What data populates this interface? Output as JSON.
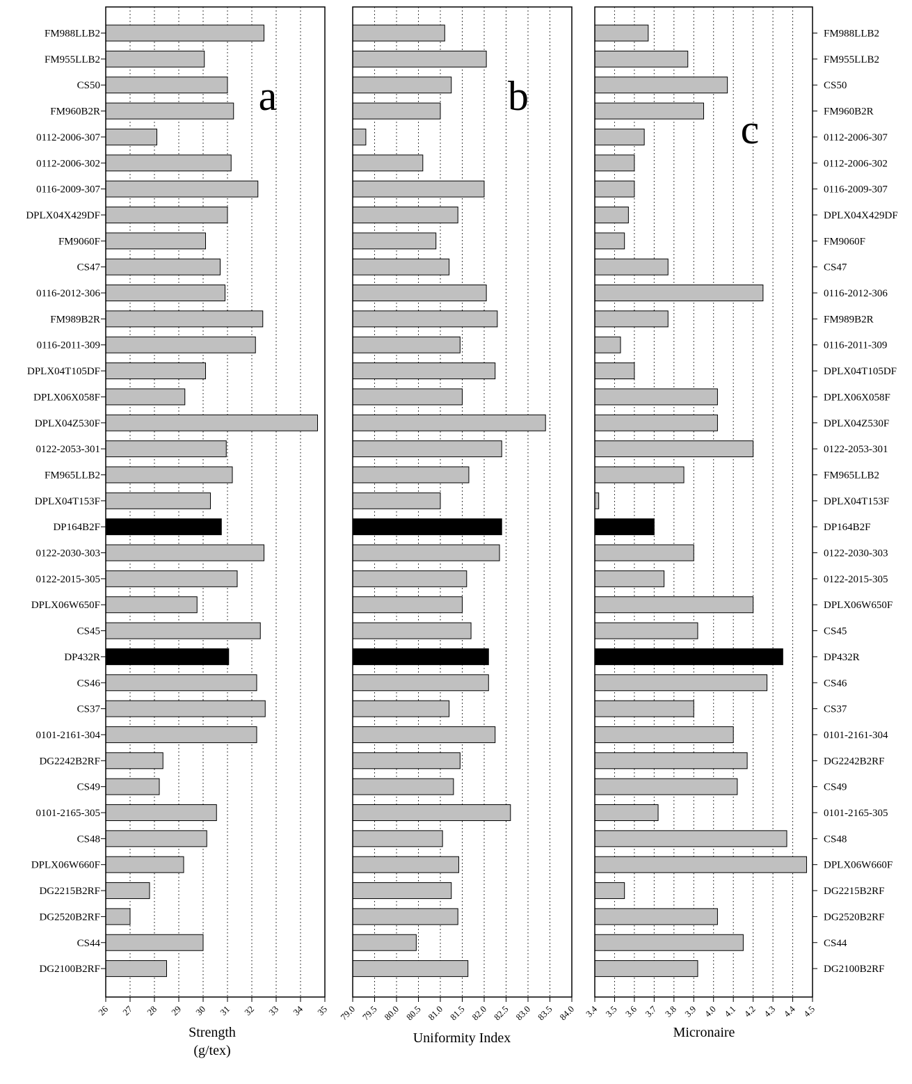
{
  "chart_data": [
    {
      "type": "bar",
      "orientation": "horizontal",
      "panel_letter": "a",
      "xlabel": [
        "Strength",
        "(g/tex)"
      ],
      "xlim": [
        26,
        35
      ],
      "xticks": [
        "26",
        "27",
        "28",
        "29",
        "30",
        "31",
        "32",
        "33",
        "34",
        "35"
      ],
      "grid": "vertical dotted",
      "categories": [
        "FM988LLB2",
        "FM955LLB2",
        "CS50",
        "FM960B2R",
        "0112-2006-307",
        "0112-2006-302",
        "0116-2009-307",
        "DPLX04X429DF",
        "FM9060F",
        "CS47",
        "0116-2012-306",
        "FM989B2R",
        "0116-2011-309",
        "DPLX04T105DF",
        "DPLX06X058F",
        "DPLX04Z530F",
        "0122-2053-301",
        "FM965LLB2",
        "DPLX04T153F",
        "DP164B2F",
        "0122-2030-303",
        "0122-2015-305",
        "DPLX06W650F",
        "CS45",
        "DP432R",
        "CS46",
        "CS37",
        "0101-2161-304",
        "DG2242B2RF",
        "CS49",
        "0101-2165-305",
        "CS48",
        "DPLX06W660F",
        "DG2215B2RF",
        "DG2520B2RF",
        "CS44",
        "DG2100B2RF"
      ],
      "values": [
        32.5,
        30.05,
        31.0,
        31.25,
        28.1,
        31.15,
        32.25,
        31.0,
        30.1,
        30.7,
        30.9,
        32.45,
        32.15,
        30.1,
        29.25,
        34.7,
        30.95,
        31.2,
        30.3,
        30.75,
        32.5,
        31.4,
        29.75,
        32.35,
        31.05,
        32.2,
        32.55,
        32.2,
        28.35,
        28.2,
        30.55,
        30.15,
        29.2,
        27.8,
        27.0,
        30.0,
        28.5
      ],
      "highlighted": [
        "DP164B2F",
        "DP432R"
      ],
      "colors": {
        "bar": "#c0c0c0",
        "highlight": "#000000"
      }
    },
    {
      "type": "bar",
      "orientation": "horizontal",
      "panel_letter": "b",
      "xlabel": [
        "Uniformity Index"
      ],
      "xlim": [
        79.0,
        84.0
      ],
      "xticks": [
        "79.0",
        "79.5",
        "80.0",
        "80.5",
        "81.0",
        "81.5",
        "82.0",
        "82.5",
        "83.0",
        "83.5",
        "84.0"
      ],
      "grid": "vertical dotted",
      "categories": [
        "FM988LLB2",
        "FM955LLB2",
        "CS50",
        "FM960B2R",
        "0112-2006-307",
        "0112-2006-302",
        "0116-2009-307",
        "DPLX04X429DF",
        "FM9060F",
        "CS47",
        "0116-2012-306",
        "FM989B2R",
        "0116-2011-309",
        "DPLX04T105DF",
        "DPLX06X058F",
        "DPLX04Z530F",
        "0122-2053-301",
        "FM965LLB2",
        "DPLX04T153F",
        "DP164B2F",
        "0122-2030-303",
        "0122-2015-305",
        "DPLX06W650F",
        "CS45",
        "DP432R",
        "CS46",
        "CS37",
        "0101-2161-304",
        "DG2242B2RF",
        "CS49",
        "0101-2165-305",
        "CS48",
        "DPLX06W660F",
        "DG2215B2RF",
        "DG2520B2RF",
        "CS44",
        "DG2100B2RF"
      ],
      "values": [
        81.1,
        82.05,
        81.25,
        81.0,
        79.3,
        80.6,
        82.0,
        81.4,
        80.9,
        81.2,
        82.05,
        82.3,
        81.45,
        82.25,
        81.5,
        83.4,
        82.4,
        81.65,
        81.0,
        82.4,
        82.35,
        81.6,
        81.5,
        81.7,
        82.1,
        82.1,
        81.2,
        82.25,
        81.45,
        81.3,
        82.6,
        81.05,
        81.42,
        81.25,
        81.4,
        80.45,
        81.63
      ],
      "highlighted": [
        "DP164B2F",
        "DP432R"
      ],
      "colors": {
        "bar": "#c0c0c0",
        "highlight": "#000000"
      }
    },
    {
      "type": "bar",
      "orientation": "horizontal",
      "panel_letter": "c",
      "xlabel": [
        "Micronaire"
      ],
      "xlim": [
        3.4,
        4.5
      ],
      "xticks": [
        "3.4",
        "3.5",
        "3.6",
        "3.7",
        "3.8",
        "3.9",
        "4.0",
        "4.1",
        "4.2",
        "4.3",
        "4.4",
        "4.5"
      ],
      "grid": "vertical dotted",
      "categories": [
        "FM988LLB2",
        "FM955LLB2",
        "CS50",
        "FM960B2R",
        "0112-2006-307",
        "0112-2006-302",
        "0116-2009-307",
        "DPLX04X429DF",
        "FM9060F",
        "CS47",
        "0116-2012-306",
        "FM989B2R",
        "0116-2011-309",
        "DPLX04T105DF",
        "DPLX06X058F",
        "DPLX04Z530F",
        "0122-2053-301",
        "FM965LLB2",
        "DPLX04T153F",
        "DP164B2F",
        "0122-2030-303",
        "0122-2015-305",
        "DPLX06W650F",
        "CS45",
        "DP432R",
        "CS46",
        "CS37",
        "0101-2161-304",
        "DG2242B2RF",
        "CS49",
        "0101-2165-305",
        "CS48",
        "DPLX06W660F",
        "DG2215B2RF",
        "DG2520B2RF",
        "CS44",
        "DG2100B2RF"
      ],
      "values": [
        3.67,
        3.87,
        4.07,
        3.95,
        3.65,
        3.6,
        3.6,
        3.57,
        3.55,
        3.77,
        4.25,
        3.77,
        3.53,
        3.6,
        4.02,
        4.02,
        4.2,
        3.85,
        3.42,
        3.7,
        3.9,
        3.75,
        4.2,
        3.92,
        4.35,
        4.27,
        3.9,
        4.1,
        4.17,
        4.12,
        3.72,
        4.37,
        4.47,
        3.55,
        4.02,
        4.15,
        3.92
      ],
      "highlighted": [
        "DP164B2F",
        "DP432R"
      ],
      "colors": {
        "bar": "#c0c0c0",
        "highlight": "#000000"
      }
    }
  ]
}
